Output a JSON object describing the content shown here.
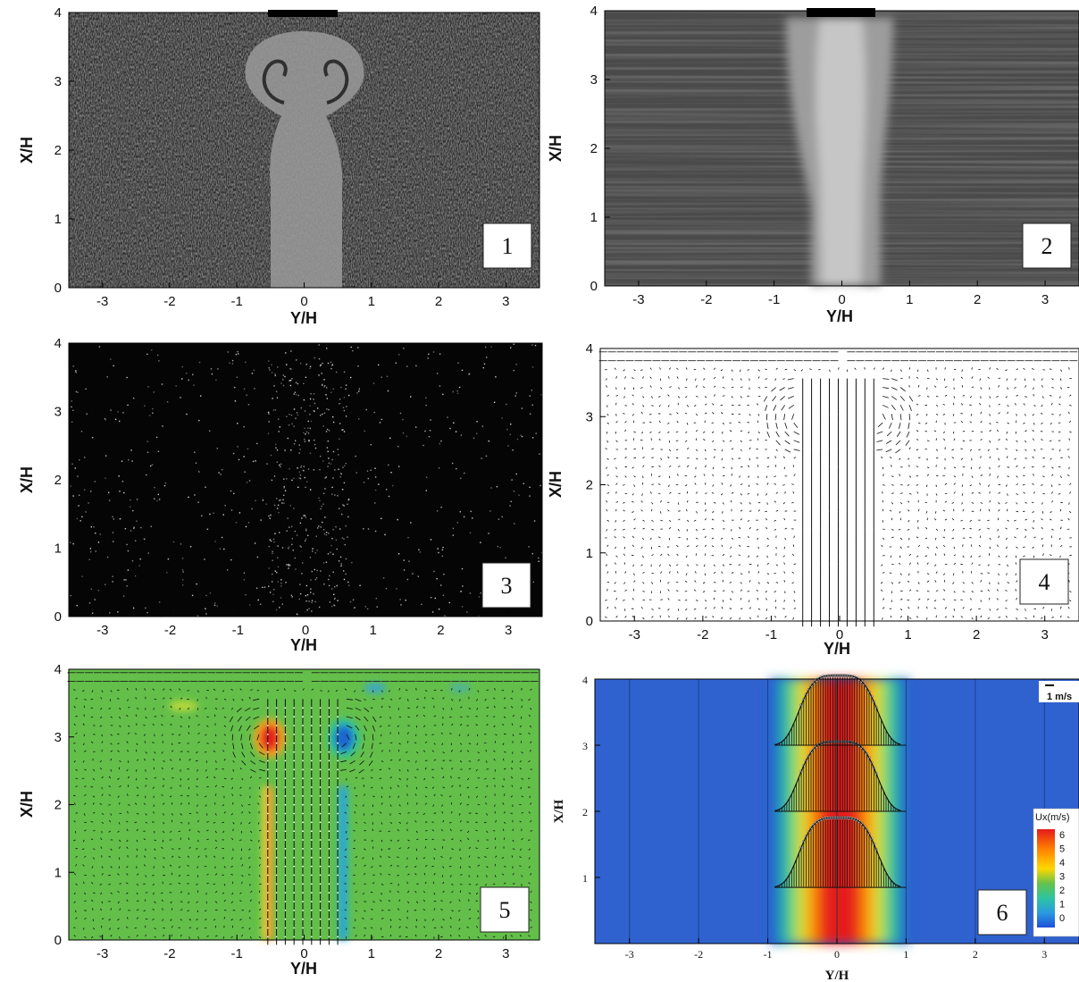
{
  "panels": [
    {
      "number": "1",
      "kind": "smoke-image",
      "xlabel": "Y/H",
      "ylabel": "X/H",
      "xticks": [
        "-3",
        "-2",
        "-1",
        "0",
        "1",
        "2",
        "3"
      ],
      "yticks": [
        "0",
        "1",
        "2",
        "3",
        "4"
      ],
      "xlim": [
        -3.5,
        3.5
      ],
      "ylim": [
        0,
        4
      ]
    },
    {
      "number": "2",
      "kind": "averaged-image",
      "xlabel": "Y/H",
      "ylabel": "X/H",
      "xticks": [
        "-3",
        "-2",
        "-1",
        "0",
        "1",
        "2",
        "3"
      ],
      "yticks": [
        "0",
        "1",
        "2",
        "3",
        "4"
      ],
      "xlim": [
        -3.5,
        3.5
      ],
      "ylim": [
        0,
        4
      ]
    },
    {
      "number": "3",
      "kind": "particle-image",
      "xlabel": "Y/H",
      "ylabel": "X/H",
      "xticks": [
        "-3",
        "-2",
        "-1",
        "0",
        "1",
        "2",
        "3"
      ],
      "yticks": [
        "0",
        "1",
        "2",
        "3",
        "4"
      ],
      "xlim": [
        -3.5,
        3.5
      ],
      "ylim": [
        0,
        4
      ]
    },
    {
      "number": "4",
      "kind": "vector-field",
      "xlabel": "Y/H",
      "ylabel": "X/H",
      "xticks": [
        "-3",
        "-2",
        "-1",
        "0",
        "1",
        "2",
        "3"
      ],
      "yticks": [
        "0",
        "1",
        "2",
        "3",
        "4"
      ],
      "xlim": [
        -3.5,
        3.5
      ],
      "ylim": [
        0,
        4
      ]
    },
    {
      "number": "5",
      "kind": "vorticity-contour-with-vectors",
      "xlabel": "Y/H",
      "ylabel": "X/H",
      "xticks": [
        "-3",
        "-2",
        "-1",
        "0",
        "1",
        "2",
        "3"
      ],
      "yticks": [
        "0",
        "1",
        "2",
        "3",
        "4"
      ],
      "xlim": [
        -3.5,
        3.5
      ],
      "ylim": [
        0,
        4
      ]
    },
    {
      "number": "6",
      "kind": "velocity-contour-with-profiles",
      "xlabel": "Y/H",
      "ylabel": "X/H",
      "xticks": [
        "-3",
        "-2",
        "-1",
        "0",
        "1",
        "2",
        "3"
      ],
      "yticks": [
        "1",
        "2",
        "3",
        "4"
      ],
      "xlim": [
        -3.5,
        3.5
      ],
      "ylim": [
        0,
        4
      ],
      "legend": {
        "title": "Ux(m/s)",
        "levels": [
          "6",
          "5",
          "4",
          "3",
          "2",
          "1",
          "0"
        ],
        "colors": [
          "#e41a1c",
          "#ff7f00",
          "#ffd700",
          "#66c24a",
          "#2ec4a0",
          "#2a9be0",
          "#1f4fd8"
        ]
      },
      "scale_label": "1 m/s",
      "profile_stations": [
        0.85,
        2.0,
        3.0
      ]
    }
  ],
  "colors": {
    "jet_red": "#e4211a",
    "jet_blue": "#1e66d0",
    "field_green": "#63bf4a",
    "contour_blue": "#2f62cf"
  }
}
